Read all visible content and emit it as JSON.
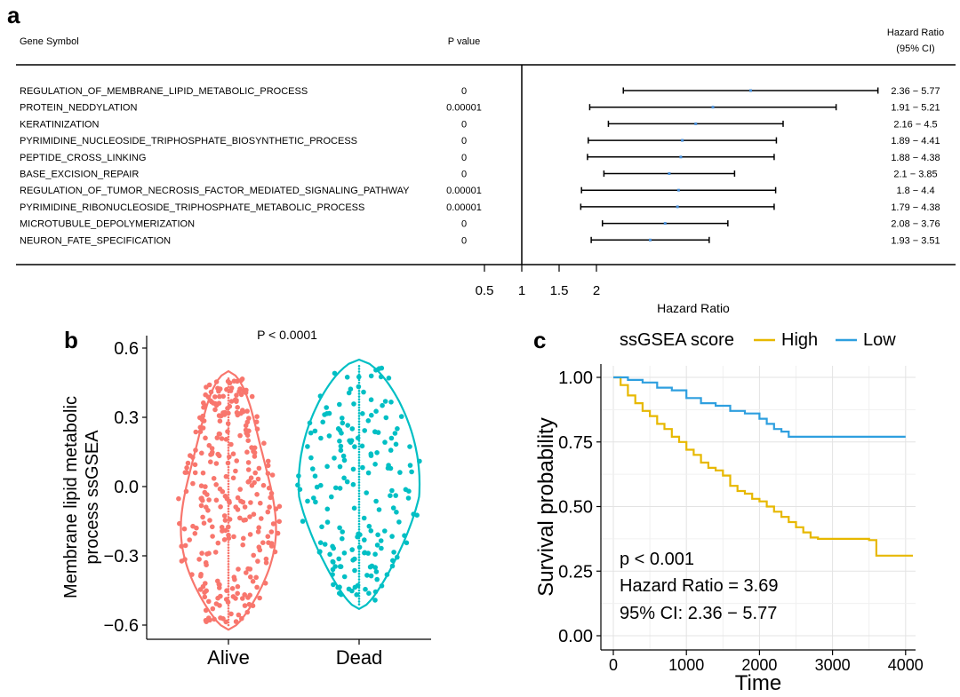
{
  "panel_labels": {
    "a": "a",
    "b": "b",
    "c": "c"
  },
  "colors": {
    "alive": "#F8766D",
    "dead": "#00BFC4",
    "high": "#E7B800",
    "low": "#2E9FDF",
    "ci_point": "#4A90D9"
  },
  "chart_data": [
    {
      "type": "forest",
      "headers": {
        "gene": "Gene Symbol",
        "pvalue": "P value",
        "hr_line1": "Hazard Ratio",
        "hr_line2": "(95% CI)"
      },
      "xlabel": "Hazard Ratio",
      "x_ticks": [
        "0.5",
        "1",
        "1.5",
        "2"
      ],
      "rows": [
        {
          "gene": "REGULATION_OF_MEMBRANE_LIPID_METABOLIC_PROCESS",
          "p": "0",
          "ci_text": "2.36 − 5.77",
          "low": 2.36,
          "high": 5.77
        },
        {
          "gene": "PROTEIN_NEDDYLATION",
          "p": "0.00001",
          "ci_text": "1.91 − 5.21",
          "low": 1.91,
          "high": 5.21
        },
        {
          "gene": "KERATINIZATION",
          "p": "0",
          "ci_text": "2.16 − 4.5",
          "low": 2.16,
          "high": 4.5
        },
        {
          "gene": "PYRIMIDINE_NUCLEOSIDE_TRIPHOSPHATE_BIOSYNTHETIC_PROCESS",
          "p": "0",
          "ci_text": "1.89 − 4.41",
          "low": 1.89,
          "high": 4.41
        },
        {
          "gene": "PEPTIDE_CROSS_LINKING",
          "p": "0",
          "ci_text": "1.88 − 4.38",
          "low": 1.88,
          "high": 4.38
        },
        {
          "gene": "BASE_EXCISION_REPAIR",
          "p": "0",
          "ci_text": "2.1 − 3.85",
          "low": 2.1,
          "high": 3.85
        },
        {
          "gene": "REGULATION_OF_TUMOR_NECROSIS_FACTOR_MEDIATED_SIGNALING_PATHWAY",
          "p": "0.00001",
          "ci_text": "1.8 − 4.4",
          "low": 1.8,
          "high": 4.4
        },
        {
          "gene": "PYRIMIDINE_RIBONUCLEOSIDE_TRIPHOSPHATE_METABOLIC_PROCESS",
          "p": "0.00001",
          "ci_text": "1.79 − 4.38",
          "low": 1.79,
          "high": 4.38
        },
        {
          "gene": "MICROTUBULE_DEPOLYMERIZATION",
          "p": "0",
          "ci_text": "2.08 − 3.76",
          "low": 2.08,
          "high": 3.76
        },
        {
          "gene": "NEURON_FATE_SPECIFICATION",
          "p": "0",
          "ci_text": "1.93 − 3.51",
          "low": 1.93,
          "high": 3.51
        }
      ]
    },
    {
      "type": "violin",
      "ylabel_line1": "Membrane lipid metabolic",
      "ylabel_line2": "process ssGSEA",
      "annotation": "P < 0.0001",
      "categories": [
        "Alive",
        "Dead"
      ],
      "y_ticks": [
        "0.6",
        "0.3",
        "0.0",
        "−0.3",
        "−0.6"
      ],
      "ylim": [
        -0.65,
        0.62
      ],
      "ranges": {
        "Alive": [
          -0.62,
          0.5
        ],
        "Dead": [
          -0.53,
          0.55
        ]
      },
      "n_points": {
        "Alive": 300,
        "Dead": 190
      }
    },
    {
      "type": "line",
      "subtype": "kaplan-meier",
      "legend_title": "ssGSEA score",
      "series_names": [
        "High",
        "Low"
      ],
      "xlabel": "Time",
      "ylabel": "Survival probability",
      "x_ticks": [
        "0",
        "1000",
        "2000",
        "3000",
        "4000"
      ],
      "y_ticks": [
        "1.00",
        "0.75",
        "0.50",
        "0.25",
        "0.00"
      ],
      "xlim": [
        0,
        4100
      ],
      "ylim": [
        0,
        1.02
      ],
      "annotations": [
        "p < 0.001",
        "Hazard Ratio = 3.69",
        "95% CI: 2.36 − 5.77"
      ],
      "series": [
        {
          "name": "High",
          "points": [
            [
              0,
              1.0
            ],
            [
              100,
              0.97
            ],
            [
              200,
              0.93
            ],
            [
              300,
              0.9
            ],
            [
              400,
              0.87
            ],
            [
              500,
              0.85
            ],
            [
              600,
              0.82
            ],
            [
              700,
              0.8
            ],
            [
              800,
              0.77
            ],
            [
              900,
              0.75
            ],
            [
              1000,
              0.72
            ],
            [
              1100,
              0.7
            ],
            [
              1200,
              0.67
            ],
            [
              1300,
              0.65
            ],
            [
              1400,
              0.64
            ],
            [
              1500,
              0.62
            ],
            [
              1600,
              0.58
            ],
            [
              1700,
              0.56
            ],
            [
              1800,
              0.55
            ],
            [
              1900,
              0.53
            ],
            [
              2000,
              0.52
            ],
            [
              2100,
              0.5
            ],
            [
              2200,
              0.48
            ],
            [
              2300,
              0.46
            ],
            [
              2400,
              0.44
            ],
            [
              2500,
              0.42
            ],
            [
              2600,
              0.4
            ],
            [
              2700,
              0.38
            ],
            [
              2800,
              0.375
            ],
            [
              3000,
              0.375
            ],
            [
              3200,
              0.375
            ],
            [
              3500,
              0.37
            ],
            [
              3600,
              0.31
            ],
            [
              4100,
              0.31
            ]
          ]
        },
        {
          "name": "Low",
          "points": [
            [
              0,
              1.0
            ],
            [
              200,
              0.99
            ],
            [
              400,
              0.98
            ],
            [
              600,
              0.96
            ],
            [
              800,
              0.95
            ],
            [
              1000,
              0.92
            ],
            [
              1200,
              0.9
            ],
            [
              1400,
              0.89
            ],
            [
              1600,
              0.87
            ],
            [
              1800,
              0.86
            ],
            [
              2000,
              0.84
            ],
            [
              2100,
              0.82
            ],
            [
              2200,
              0.8
            ],
            [
              2300,
              0.79
            ],
            [
              2400,
              0.77
            ],
            [
              2600,
              0.77
            ],
            [
              3000,
              0.77
            ],
            [
              3500,
              0.77
            ],
            [
              4000,
              0.77
            ]
          ]
        }
      ]
    }
  ]
}
